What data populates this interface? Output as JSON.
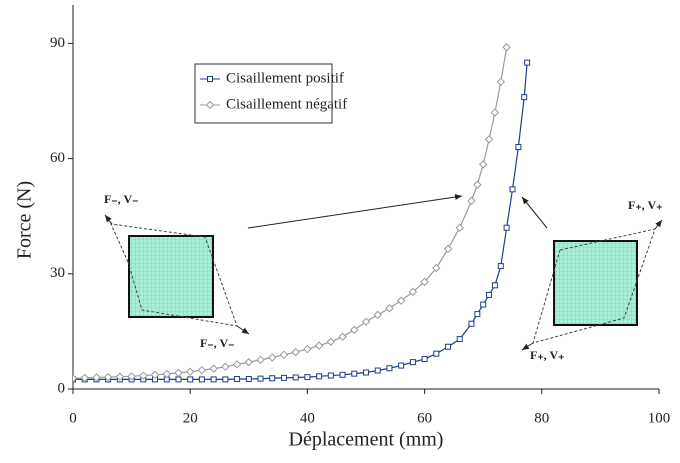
{
  "chart_data": {
    "type": "line",
    "xlabel": "Déplacement (mm)",
    "ylabel": "Force (N)",
    "xlim": [
      0,
      100
    ],
    "xticks": [
      0,
      20,
      40,
      60,
      80,
      100
    ],
    "ylim": [
      0,
      100
    ],
    "yticks": [
      0,
      30,
      60,
      90
    ],
    "grid": false,
    "series": [
      {
        "name": "Cisaillement positif",
        "color": "#1f3c88",
        "marker": "square",
        "x": [
          0,
          2,
          4,
          6,
          8,
          10,
          12,
          14,
          16,
          18,
          20,
          22,
          24,
          26,
          28,
          30,
          32,
          34,
          36,
          38,
          40,
          42,
          44,
          46,
          48,
          50,
          52,
          54,
          56,
          58,
          60,
          62,
          64,
          66,
          68,
          69,
          70,
          71,
          72,
          73,
          74,
          75,
          76,
          77,
          77.5
        ],
        "values": [
          2.5,
          2.5,
          2.5,
          2.5,
          2.5,
          2.5,
          2.5,
          2.5,
          2.5,
          2.5,
          2.5,
          2.5,
          2.5,
          2.5,
          2.6,
          2.6,
          2.7,
          2.8,
          2.9,
          3.0,
          3.1,
          3.3,
          3.5,
          3.7,
          4.0,
          4.3,
          4.8,
          5.4,
          6.1,
          7.0,
          7.8,
          9.2,
          11,
          13,
          17,
          19.5,
          22,
          24.5,
          27,
          32,
          42,
          52,
          63,
          76,
          85
        ]
      },
      {
        "name": "Cisaillement négatif",
        "color": "#9a9a9a",
        "marker": "diamond",
        "x": [
          0,
          2,
          4,
          6,
          8,
          10,
          12,
          14,
          16,
          18,
          20,
          22,
          24,
          26,
          28,
          30,
          32,
          34,
          36,
          38,
          40,
          42,
          44,
          46,
          48,
          50,
          52,
          54,
          56,
          58,
          60,
          62,
          64,
          66,
          68,
          69,
          70,
          71,
          72,
          73,
          74
        ],
        "values": [
          2.8,
          2.9,
          3.0,
          3.1,
          3.2,
          3.3,
          3.5,
          3.7,
          3.9,
          4.2,
          4.5,
          4.9,
          5.3,
          5.8,
          6.4,
          7.0,
          7.6,
          8.2,
          8.9,
          9.6,
          10.4,
          11.3,
          12.3,
          13.6,
          15.4,
          17.5,
          19.3,
          21,
          23,
          25.3,
          27.9,
          31.5,
          36.5,
          42,
          49,
          53.2,
          58.5,
          65,
          72,
          80,
          89
        ]
      }
    ],
    "annotations": [
      "F₋, V₋",
      "F₋, V₋",
      "F₊, V₊",
      "F₊, V₊"
    ]
  }
}
